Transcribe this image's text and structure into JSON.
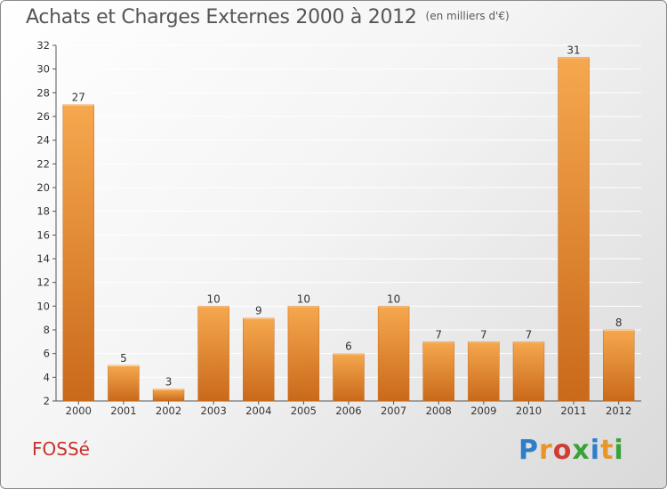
{
  "header": {
    "title": "Achats et Charges Externes 2000 à 2012",
    "subtitle": "(en milliers d'€)"
  },
  "footer": {
    "commune": "FOSSé",
    "logo_letters": [
      "P",
      "r",
      "o",
      "x",
      "i",
      "t",
      "i"
    ],
    "logo_colors": [
      "#2f7fc8",
      "#e8952a",
      "#d23c32",
      "#3aa23a",
      "#2f7fc8",
      "#e8952a",
      "#3aa23a"
    ]
  },
  "colors": {
    "bar_light": "#f6a84e",
    "bar_dark": "#c9691a",
    "grid": "#ffffff",
    "axis": "#555555"
  },
  "chart_data": {
    "type": "bar",
    "title": "Achats et Charges Externes 2000 à 2012",
    "subtitle": "(en milliers d'€)",
    "categories": [
      "2000",
      "2001",
      "2002",
      "2003",
      "2004",
      "2005",
      "2006",
      "2007",
      "2008",
      "2009",
      "2010",
      "2011",
      "2012"
    ],
    "values": [
      27,
      5,
      3,
      10,
      9,
      10,
      6,
      10,
      7,
      7,
      7,
      31,
      8
    ],
    "ylim": [
      2,
      32
    ],
    "yticks": [
      2,
      4,
      6,
      8,
      10,
      12,
      14,
      16,
      18,
      20,
      22,
      24,
      26,
      28,
      30,
      32
    ],
    "grid": true,
    "xlabel": "",
    "ylabel": ""
  }
}
